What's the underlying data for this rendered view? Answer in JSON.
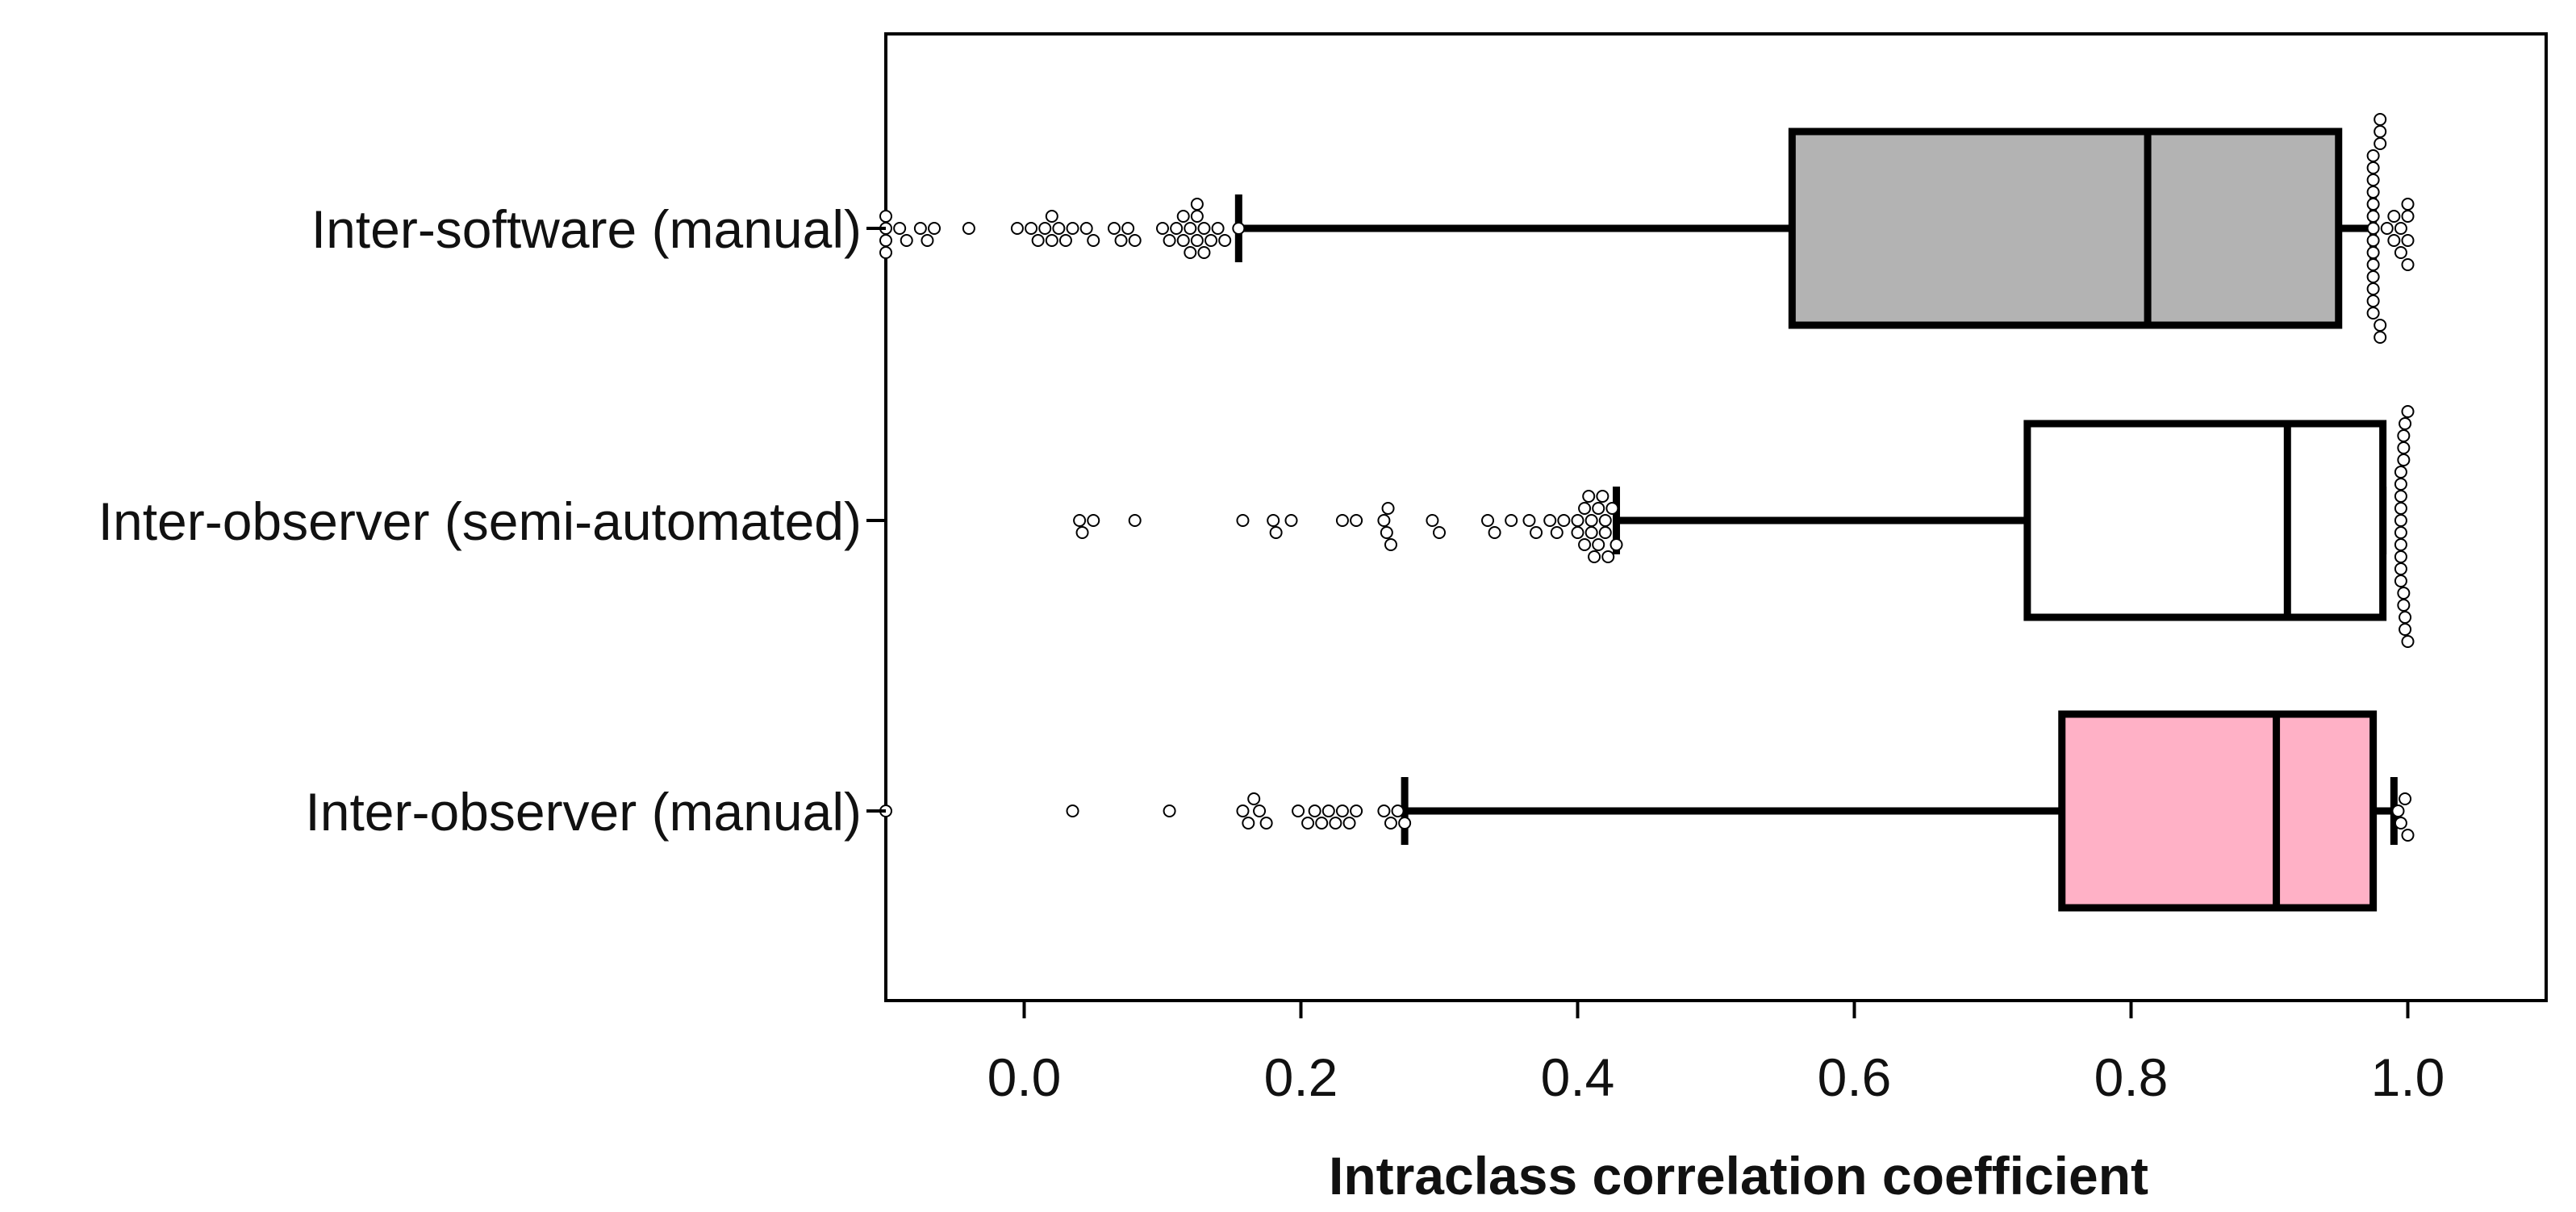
{
  "chart_data": {
    "type": "boxplot",
    "title": "",
    "xlabel": "Intraclass correlation coefficient",
    "ylabel": "",
    "xlim": [
      -0.1,
      1.1
    ],
    "xticks": [
      0.0,
      0.2,
      0.4,
      0.6,
      0.8,
      1.0
    ],
    "xtick_labels": [
      "0.0",
      "0.2",
      "0.4",
      "0.6",
      "0.8",
      "1.0"
    ],
    "grid": false,
    "legend": "none",
    "series": [
      {
        "name": "Inter-software (manual)",
        "color": "#b3b3b3",
        "whisker_low": 0.155,
        "q1": 0.555,
        "median": 0.812,
        "q3": 0.95,
        "whisker_high": 0.975,
        "outliers": [
          -0.1,
          -0.1,
          -0.1,
          -0.1,
          -0.09,
          -0.085,
          -0.075,
          -0.07,
          -0.065,
          -0.04,
          -0.005,
          0.005,
          0.01,
          0.015,
          0.02,
          0.02,
          0.025,
          0.03,
          0.035,
          0.045,
          0.05,
          0.065,
          0.07,
          0.075,
          0.08,
          0.1,
          0.105,
          0.11,
          0.115,
          0.115,
          0.12,
          0.12,
          0.125,
          0.125,
          0.125,
          0.13,
          0.13,
          0.135,
          0.14,
          0.145,
          0.155,
          0.975,
          0.975,
          0.975,
          0.975,
          0.975,
          0.975,
          0.975,
          0.975,
          0.975,
          0.975,
          0.975,
          0.975,
          0.975,
          0.975,
          0.98,
          0.98,
          0.98,
          0.98,
          0.98,
          0.985,
          0.99,
          0.99,
          0.995,
          0.995,
          1.0,
          1.0,
          1.0,
          1.0
        ]
      },
      {
        "name": "Inter-observer (semi-automated)",
        "color": "#ffffff",
        "whisker_low": 0.428,
        "q1": 0.725,
        "median": 0.913,
        "q3": 0.982,
        "whisker_high": 0.982,
        "outliers": [
          0.04,
          0.042,
          0.05,
          0.08,
          0.158,
          0.18,
          0.182,
          0.193,
          0.23,
          0.24,
          0.26,
          0.262,
          0.263,
          0.265,
          0.295,
          0.3,
          0.335,
          0.34,
          0.352,
          0.365,
          0.37,
          0.38,
          0.385,
          0.39,
          0.4,
          0.4,
          0.405,
          0.405,
          0.408,
          0.41,
          0.41,
          0.412,
          0.415,
          0.415,
          0.418,
          0.42,
          0.42,
          0.422,
          0.425,
          0.428,
          0.995,
          0.995,
          0.995,
          0.995,
          0.995,
          0.995,
          0.995,
          0.995,
          0.995,
          0.995,
          0.997,
          0.997,
          0.997,
          0.997,
          0.997,
          0.998,
          0.998,
          0.998,
          1.0,
          1.0
        ]
      },
      {
        "name": "Inter-observer (manual)",
        "color": "#ffb1c6",
        "whisker_low": 0.275,
        "q1": 0.75,
        "median": 0.905,
        "q3": 0.975,
        "whisker_high": 0.99,
        "outliers": [
          -0.1,
          0.035,
          0.105,
          0.158,
          0.162,
          0.166,
          0.17,
          0.175,
          0.198,
          0.205,
          0.21,
          0.215,
          0.22,
          0.225,
          0.23,
          0.235,
          0.24,
          0.26,
          0.265,
          0.27,
          0.275,
          0.993,
          0.995,
          0.998,
          1.0
        ]
      }
    ]
  }
}
